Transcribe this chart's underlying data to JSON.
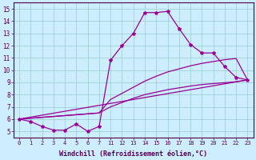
{
  "xlabel": "Windchill (Refroidissement éolien,°C)",
  "bg_color": "#cceeff",
  "line_color": "#990099",
  "x_labels": [
    "0",
    "1",
    "2",
    "3",
    "4",
    "5",
    "6",
    "7",
    "11",
    "12",
    "13",
    "14",
    "15",
    "16",
    "17",
    "18",
    "19",
    "20",
    "21",
    "22",
    "23"
  ],
  "ylim": [
    4.5,
    15.5
  ],
  "yticks": [
    5,
    6,
    7,
    8,
    9,
    10,
    11,
    12,
    13,
    14,
    15
  ],
  "line1_idx": [
    0,
    1,
    2,
    3,
    4,
    5,
    6,
    7,
    8,
    9,
    10,
    11,
    12,
    13,
    14,
    15,
    16,
    17,
    18,
    19,
    20
  ],
  "line1_y": [
    6.0,
    5.8,
    5.4,
    5.1,
    5.1,
    5.6,
    5.0,
    5.4,
    10.8,
    12.0,
    13.0,
    14.7,
    14.7,
    14.8,
    13.4,
    12.1,
    11.4,
    11.4,
    10.3,
    9.4,
    9.2
  ],
  "line2_idx": [
    0,
    7,
    8,
    9,
    10,
    11,
    12,
    13,
    14,
    15,
    16,
    17,
    18,
    19,
    20
  ],
  "line2_y": [
    6.0,
    6.5,
    7.6,
    8.1,
    8.6,
    9.1,
    9.5,
    9.85,
    10.1,
    10.35,
    10.55,
    10.7,
    10.85,
    10.95,
    9.2
  ],
  "line3_idx": [
    0,
    7,
    8,
    9,
    10,
    11,
    12,
    13,
    14,
    15,
    16,
    17,
    18,
    19,
    20
  ],
  "line3_y": [
    6.0,
    6.5,
    7.0,
    7.35,
    7.7,
    8.0,
    8.2,
    8.4,
    8.55,
    8.7,
    8.82,
    8.9,
    8.97,
    9.05,
    9.2
  ],
  "line4_idx": [
    0,
    20
  ],
  "line4_y": [
    6.0,
    9.2
  ],
  "figsize": [
    3.2,
    2.0
  ],
  "dpi": 100
}
